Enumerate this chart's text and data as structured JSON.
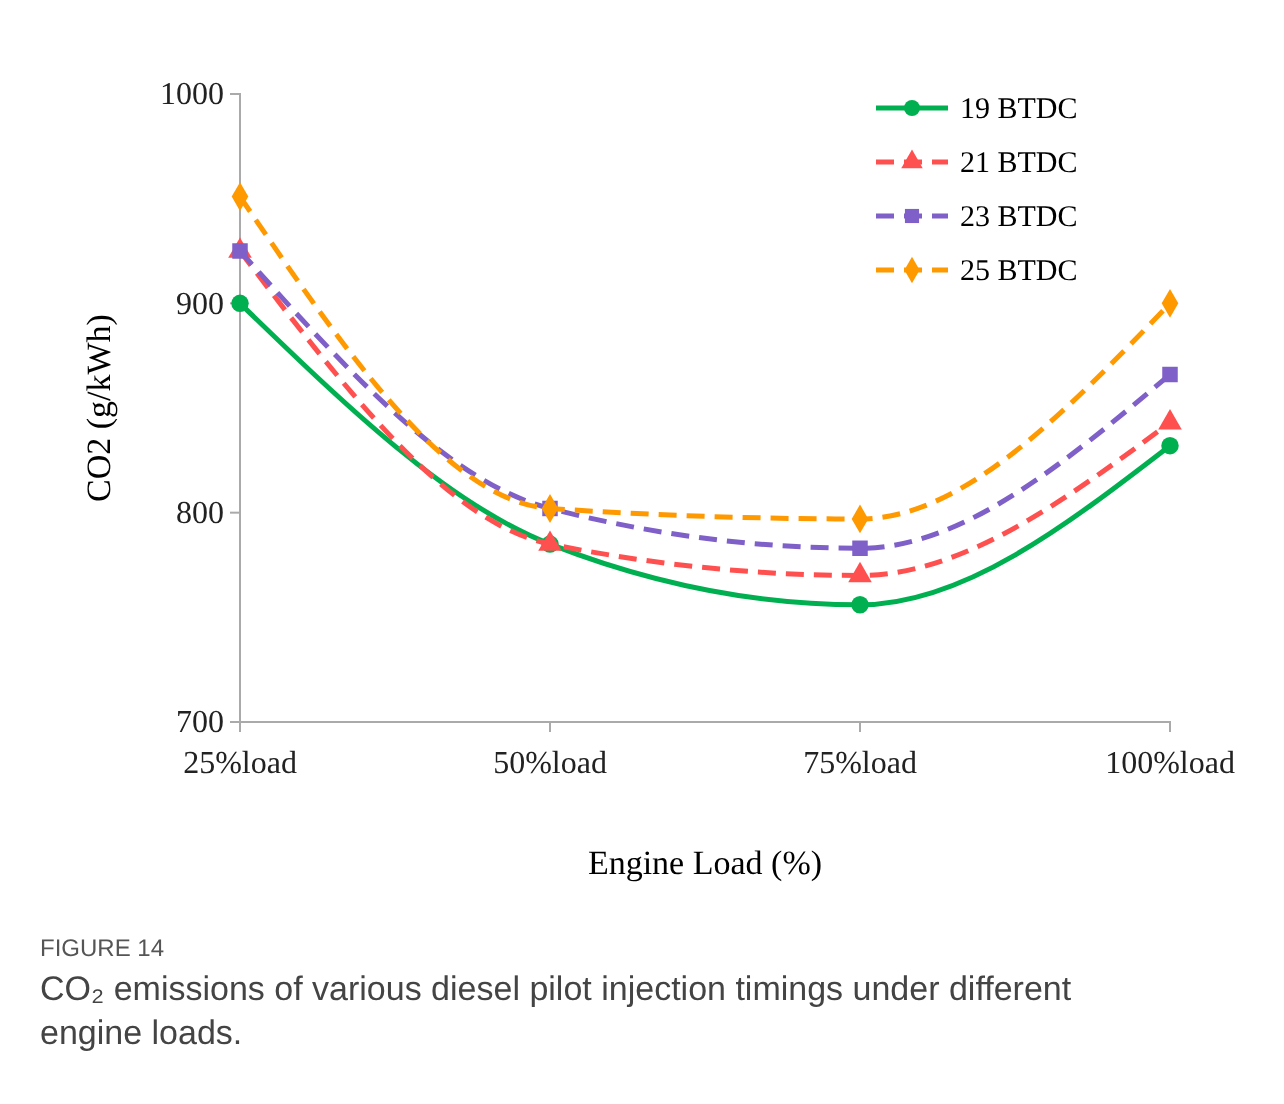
{
  "chart_data": {
    "type": "line",
    "xlabel": "Engine Load (%)",
    "ylabel": "CO2 (g/kWh)",
    "categories": [
      "25%load",
      "50%load",
      "75%load",
      "100%load"
    ],
    "ylim": [
      700,
      1000
    ],
    "yticks": [
      700,
      800,
      900,
      1000
    ],
    "grid": false,
    "legend": "top right",
    "series": [
      {
        "name": "19 BTDC",
        "color": "#00b050",
        "values": [
          900,
          785,
          756,
          832
        ],
        "marker": "circle",
        "line_style": "solid"
      },
      {
        "name": "21 BTDC",
        "color": "#ff5050",
        "values": [
          925,
          785,
          770,
          843
        ],
        "marker": "triangle",
        "line_style": "dashed"
      },
      {
        "name": "23 BTDC",
        "color": "#7f5fc8",
        "values": [
          925,
          802,
          783,
          866
        ],
        "marker": "square",
        "line_style": "dashed"
      },
      {
        "name": "25 BTDC",
        "color": "#ff9900",
        "values": [
          951,
          802,
          797,
          900
        ],
        "marker": "diamond",
        "line_style": "dashed"
      }
    ],
    "annotations": [
      "FIGURE 14",
      "CO₂ emissions of various diesel pilot injection timings under different engine loads."
    ]
  }
}
